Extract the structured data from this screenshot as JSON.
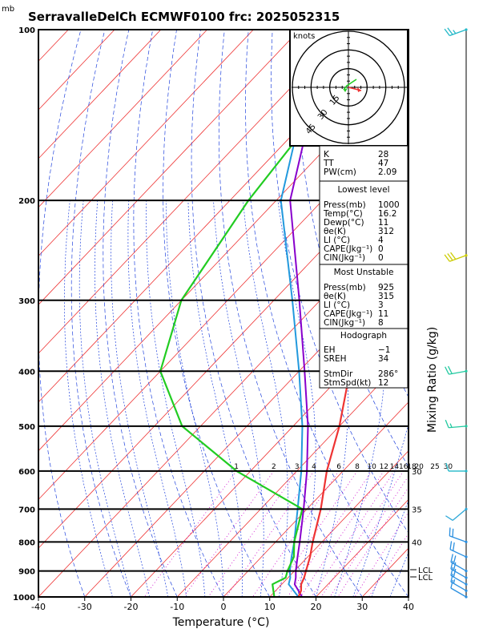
{
  "chart_data": {
    "type": "skew-t",
    "title": "SerravalleDelCh ECMWF0100 frc: 2025052315",
    "pressure_unit": "mb",
    "xlabel": "Temperature (°C)",
    "ylabel_right": "Mixing Ratio (g/kg)",
    "x_ticks": [
      -40,
      -30,
      -20,
      -10,
      0,
      10,
      20,
      30,
      40
    ],
    "xlim": [
      -40,
      40
    ],
    "y_ticks": [
      100,
      200,
      300,
      400,
      500,
      600,
      700,
      800,
      900,
      1000
    ],
    "ylim": [
      1000,
      100
    ],
    "mixing_ratio_labels": [
      "1",
      "2",
      "3",
      "4",
      "6",
      "8",
      "10",
      "12",
      "14",
      "16",
      "18",
      "20",
      "25",
      "30"
    ],
    "theta_labels": [
      "30",
      "35",
      "40"
    ],
    "lcl_labels": [
      "LCL",
      "LCL"
    ],
    "temperature_profile": [
      {
        "p": 1000,
        "t": 16.2
      },
      {
        "p": 975,
        "t": 15.5
      },
      {
        "p": 950,
        "t": 14.2
      },
      {
        "p": 925,
        "t": 13.5
      },
      {
        "p": 900,
        "t": 12.5
      },
      {
        "p": 850,
        "t": 10.5
      },
      {
        "p": 800,
        "t": 8.0
      },
      {
        "p": 700,
        "t": 3.0
      },
      {
        "p": 600,
        "t": -3.5
      },
      {
        "p": 500,
        "t": -10.0
      },
      {
        "p": 400,
        "t": -19.0
      },
      {
        "p": 300,
        "t": -32.0
      },
      {
        "p": 250,
        "t": -42.0
      },
      {
        "p": 200,
        "t": -48.0
      },
      {
        "p": 150,
        "t": -54.0
      },
      {
        "p": 100,
        "t": -57.0
      }
    ],
    "dewpoint_profile": [
      {
        "p": 1000,
        "t": 11.0
      },
      {
        "p": 975,
        "t": 9.5
      },
      {
        "p": 950,
        "t": 8.0
      },
      {
        "p": 925,
        "t": 9.5
      },
      {
        "p": 900,
        "t": 8.5
      },
      {
        "p": 850,
        "t": 7.0
      },
      {
        "p": 800,
        "t": 4.0
      },
      {
        "p": 700,
        "t": -1.0
      },
      {
        "p": 600,
        "t": -23.0
      },
      {
        "p": 500,
        "t": -44.0
      },
      {
        "p": 400,
        "t": -60.0
      },
      {
        "p": 300,
        "t": -70.0
      },
      {
        "p": 200,
        "t": -76.0
      },
      {
        "p": 100,
        "t": -82.0
      }
    ],
    "parcel_profile": [
      {
        "p": 1000,
        "t": 16.2
      },
      {
        "p": 950,
        "t": 11.5
      },
      {
        "p": 925,
        "t": 10.5
      },
      {
        "p": 900,
        "t": 9.0
      },
      {
        "p": 850,
        "t": 6.5
      },
      {
        "p": 800,
        "t": 4.0
      },
      {
        "p": 700,
        "t": -2.0
      },
      {
        "p": 600,
        "t": -9.0
      },
      {
        "p": 500,
        "t": -18.0
      },
      {
        "p": 400,
        "t": -30.0
      },
      {
        "p": 300,
        "t": -46.0
      },
      {
        "p": 200,
        "t": -69.0
      },
      {
        "p": 150,
        "t": -80.0
      },
      {
        "p": 100,
        "t": -95.0
      }
    ],
    "virtual_parcel_profile": [
      {
        "p": 1000,
        "t": 17.0
      },
      {
        "p": 950,
        "t": 12.8
      },
      {
        "p": 925,
        "t": 11.7
      },
      {
        "p": 900,
        "t": 10.3
      },
      {
        "p": 850,
        "t": 7.8
      },
      {
        "p": 800,
        "t": 5.2
      },
      {
        "p": 700,
        "t": -0.7
      },
      {
        "p": 600,
        "t": -7.8
      },
      {
        "p": 500,
        "t": -16.8
      },
      {
        "p": 400,
        "t": -28.8
      },
      {
        "p": 300,
        "t": -44.5
      },
      {
        "p": 200,
        "t": -67.0
      },
      {
        "p": 150,
        "t": -78.0
      },
      {
        "p": 100,
        "t": -93.0
      }
    ],
    "hodograph": {
      "units": "knots",
      "ring_labels": [
        "15",
        "30",
        "45"
      ]
    },
    "wind_barbs": [
      {
        "p": 100,
        "dir": 250,
        "spd": 25,
        "color": "#22b8c8"
      },
      {
        "p": 250,
        "dir": 250,
        "spd": 30,
        "color": "#cccc00"
      },
      {
        "p": 400,
        "dir": 260,
        "spd": 20,
        "color": "#22c9a0"
      },
      {
        "p": 500,
        "dir": 265,
        "spd": 15,
        "color": "#22c9a0"
      },
      {
        "p": 600,
        "dir": 270,
        "spd": 10,
        "color": "#22b8c8"
      },
      {
        "p": 700,
        "dir": 230,
        "spd": 10,
        "color": "#2da8d8"
      },
      {
        "p": 800,
        "dir": 290,
        "spd": 20,
        "color": "#2a8fe0"
      },
      {
        "p": 850,
        "dir": 295,
        "spd": 20,
        "color": "#2a8fe0"
      },
      {
        "p": 900,
        "dir": 300,
        "spd": 20,
        "color": "#2a8fe0"
      },
      {
        "p": 925,
        "dir": 300,
        "spd": 20,
        "color": "#2a8fe0"
      },
      {
        "p": 950,
        "dir": 300,
        "spd": 20,
        "color": "#2a8fe0"
      },
      {
        "p": 975,
        "dir": 300,
        "spd": 15,
        "color": "#2a8fe0"
      },
      {
        "p": 1000,
        "dir": 300,
        "spd": 10,
        "color": "#2a8fe0"
      }
    ],
    "colors": {
      "temperature": "#ee3333",
      "dewpoint": "#22cc22",
      "parcel": "#2299dd",
      "virtual_parcel": "#8800cc",
      "isotherm": "#ee3333",
      "dry_adiabat": "#2244dd",
      "moist_adiabat": "#2244dd",
      "mixing_ratio": "#cc00cc",
      "label_purple": "#9900bb"
    }
  },
  "indices": {
    "rows": [
      {
        "label": "K",
        "value": "28"
      },
      {
        "label": "TT",
        "value": "47"
      },
      {
        "label": "PW(cm)",
        "value": "2.09"
      }
    ],
    "lowest": {
      "header": "Lowest level",
      "rows": [
        {
          "label": "Press(mb)",
          "value": "1000"
        },
        {
          "label": "Temp(°C)",
          "value": "16.2"
        },
        {
          "label": "Dewp(°C)",
          "value": "11"
        },
        {
          "label": "θe(K)",
          "value": "312"
        },
        {
          "label": "LI (°C)",
          "value": "4"
        },
        {
          "label": "CAPE(Jkg⁻¹)",
          "value": "0"
        },
        {
          "label": "CIN(Jkg⁻¹)",
          "value": "0"
        }
      ]
    },
    "unstable": {
      "header": "Most Unstable",
      "rows": [
        {
          "label": "Press(mb)",
          "value": "925"
        },
        {
          "label": "θe(K)",
          "value": "315"
        },
        {
          "label": "LI (°C)",
          "value": "3"
        },
        {
          "label": "CAPE(Jkg⁻¹)",
          "value": "11"
        },
        {
          "label": "CIN(Jkg⁻¹)",
          "value": "8"
        }
      ]
    },
    "hodo": {
      "header": "Hodograph",
      "rows": [
        {
          "label": "EH",
          "value": "−1"
        },
        {
          "label": "SREH",
          "value": "34"
        },
        {
          "label": "StmDir",
          "value": "286°"
        },
        {
          "label": "StmSpd(kt)",
          "value": "12"
        }
      ]
    }
  }
}
